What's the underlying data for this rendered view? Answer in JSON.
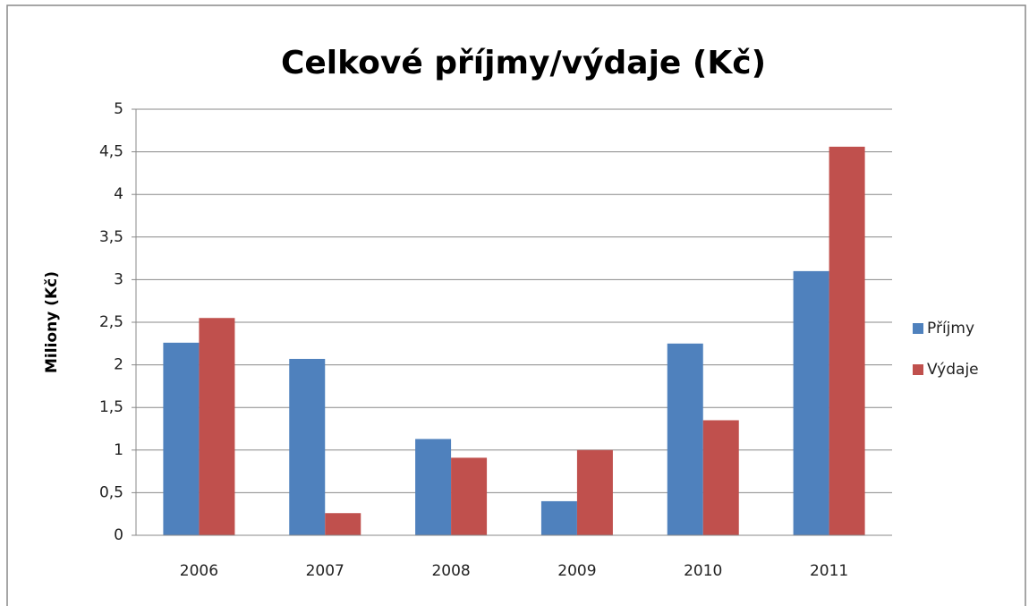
{
  "chart_data": {
    "type": "bar",
    "title": "Celkové příjmy/výdaje (Kč)",
    "y_label": "Miliony (Kč)",
    "categories": [
      "2006",
      "2007",
      "2008",
      "2009",
      "2010",
      "2011"
    ],
    "series": [
      {
        "name": "Příjmy",
        "color": "#4f81bd",
        "values": [
          2.26,
          2.07,
          1.13,
          0.4,
          2.25,
          3.1
        ]
      },
      {
        "name": "Výdaje",
        "color": "#c0504d",
        "values": [
          2.55,
          0.26,
          0.91,
          1.0,
          1.35,
          4.56
        ]
      }
    ],
    "ylim": [
      0,
      5
    ],
    "yticks": [
      0,
      {
        "value": 0.5,
        "label": "0,5"
      },
      1,
      {
        "value": 1.5,
        "label": "1,5"
      },
      2,
      {
        "value": 2.5,
        "label": "2,5"
      },
      3,
      {
        "value": 3.5,
        "label": "3,5"
      },
      4,
      {
        "value": 4.5,
        "label": "4,5"
      },
      5
    ],
    "grid": true,
    "legend": "right"
  }
}
